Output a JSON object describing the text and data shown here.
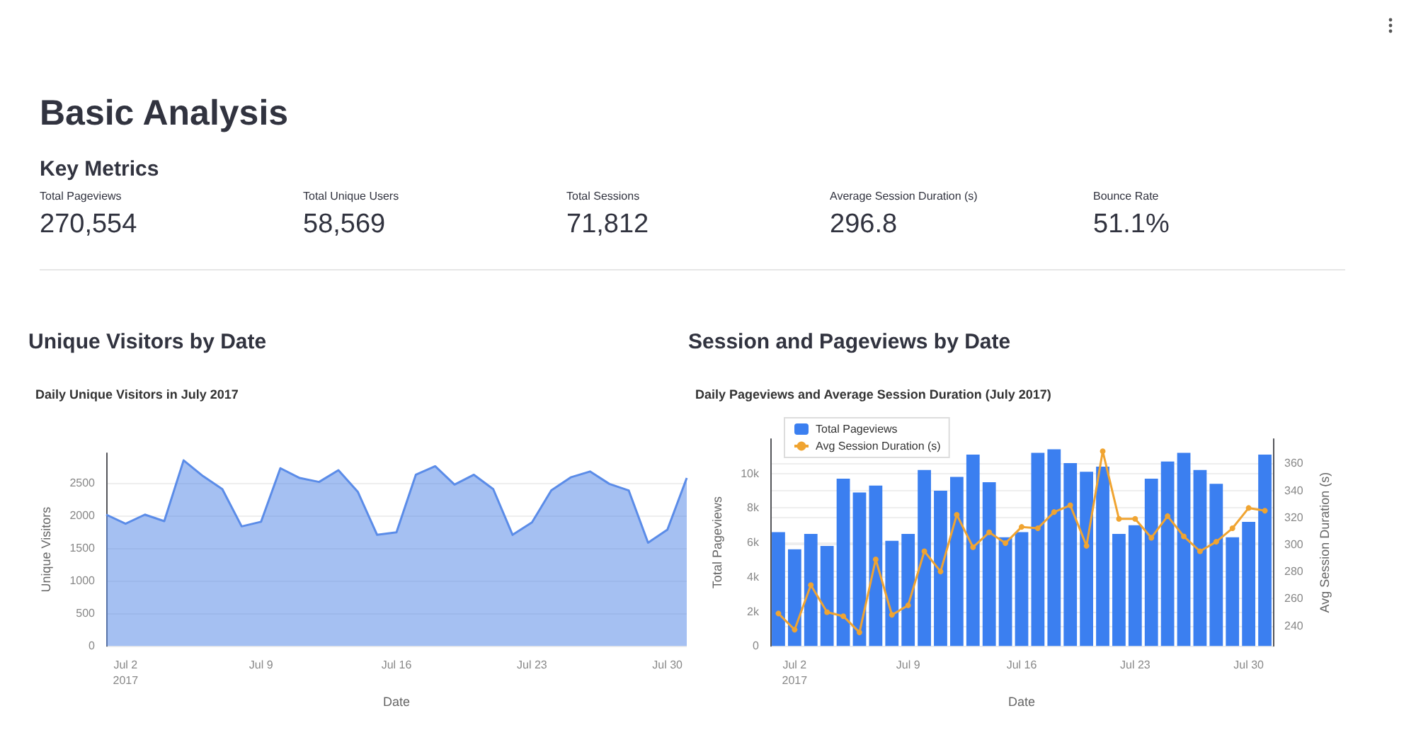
{
  "chart_data": [
    {
      "type": "other",
      "title": "Basic Analysis",
      "subtitle": "Key Metrics",
      "annotations": [
        "Total Pageviews",
        "270,554",
        "Total Unique Users",
        "58,569",
        "Total Sessions",
        "71,812",
        "Average Session Duration (s)",
        "296.8",
        "Bounce Rate",
        "51.1%"
      ]
    },
    {
      "type": "area",
      "title": "Unique Visitors by Date",
      "subtitle": "Daily Unique Visitors in July 2017",
      "xlabel": "Date",
      "ylabel": "Unique Visitors",
      "x": [
        "2017-07-01",
        "2017-07-02",
        "2017-07-03",
        "2017-07-04",
        "2017-07-05",
        "2017-07-06",
        "2017-07-07",
        "2017-07-08",
        "2017-07-09",
        "2017-07-10",
        "2017-07-11",
        "2017-07-12",
        "2017-07-13",
        "2017-07-14",
        "2017-07-15",
        "2017-07-16",
        "2017-07-17",
        "2017-07-18",
        "2017-07-19",
        "2017-07-20",
        "2017-07-21",
        "2017-07-22",
        "2017-07-23",
        "2017-07-24",
        "2017-07-25",
        "2017-07-26",
        "2017-07-27",
        "2017-07-28",
        "2017-07-29",
        "2017-07-30",
        "2017-07-31"
      ],
      "series": [
        {
          "color": "#5b8ce8",
          "values": [
            2010,
            1870,
            2010,
            1910,
            2840,
            2600,
            2400,
            1830,
            1900,
            2720,
            2570,
            2510,
            2690,
            2360,
            1700,
            1740,
            2620,
            2750,
            2470,
            2620,
            2400,
            1700,
            1890,
            2380,
            2580,
            2670,
            2480,
            2380,
            1580,
            1780,
            2570
          ]
        }
      ],
      "xlim": [
        "2017-07-01",
        "2017-07-31"
      ],
      "xticks": [
        {
          "value": "2017-07-02",
          "label": "Jul 2\n2017"
        },
        {
          "value": "2017-07-09",
          "label": "Jul 9"
        },
        {
          "value": "2017-07-16",
          "label": "Jul 16"
        },
        {
          "value": "2017-07-23",
          "label": "Jul 23"
        },
        {
          "value": "2017-07-30",
          "label": "Jul 30"
        }
      ],
      "ylim": [
        0,
        2950
      ],
      "yticks": [
        0,
        500,
        1000,
        1500,
        2000,
        2500
      ],
      "grid": "y",
      "legend": false
    },
    {
      "type": "bar",
      "title": "Session and Pageviews by Date",
      "subtitle": "Daily Pageviews and Average Session Duration (July 2017)",
      "xlabel": "Date",
      "ylabel": "Total Pageviews",
      "y2label": "Avg Session Duration (s)",
      "x": [
        "2017-07-01",
        "2017-07-02",
        "2017-07-03",
        "2017-07-04",
        "2017-07-05",
        "2017-07-06",
        "2017-07-07",
        "2017-07-08",
        "2017-07-09",
        "2017-07-10",
        "2017-07-11",
        "2017-07-12",
        "2017-07-13",
        "2017-07-14",
        "2017-07-15",
        "2017-07-16",
        "2017-07-17",
        "2017-07-18",
        "2017-07-19",
        "2017-07-20",
        "2017-07-21",
        "2017-07-22",
        "2017-07-23",
        "2017-07-24",
        "2017-07-25",
        "2017-07-26",
        "2017-07-27",
        "2017-07-28",
        "2017-07-29",
        "2017-07-30",
        "2017-07-31"
      ],
      "series": [
        {
          "name": "Total Pageviews",
          "color": "#3b7ff0",
          "values": [
            6600,
            5600,
            6500,
            5800,
            9700,
            8900,
            9300,
            6100,
            6500,
            10200,
            9000,
            9800,
            11100,
            9500,
            6300,
            6600,
            11200,
            11400,
            10600,
            10100,
            10400,
            6500,
            7000,
            9700,
            10700,
            11200,
            10200,
            9400,
            6300,
            7200,
            11100
          ]
        },
        {
          "name": "Avg Session Duration (s)",
          "type": "line",
          "axis": "y2",
          "color": "#f0a431",
          "values": [
            249,
            237,
            270,
            250,
            247,
            235,
            289,
            248,
            255,
            295,
            280,
            322,
            298,
            309,
            301,
            313,
            312,
            324,
            329,
            299,
            369,
            319,
            319,
            305,
            321,
            306,
            295,
            302,
            312,
            327,
            325
          ]
        }
      ],
      "xlim": [
        "2017-06-30T12:00",
        "2017-07-31T12:00"
      ],
      "xticks": [
        {
          "value": "2017-07-02",
          "label": "Jul 2\n2017"
        },
        {
          "value": "2017-07-09",
          "label": "Jul 9"
        },
        {
          "value": "2017-07-16",
          "label": "Jul 16"
        },
        {
          "value": "2017-07-23",
          "label": "Jul 23"
        },
        {
          "value": "2017-07-30",
          "label": "Jul 30"
        }
      ],
      "ylim": [
        0,
        12000
      ],
      "yticks": [
        0,
        {
          "value": 2000,
          "label": "2k"
        },
        {
          "value": 4000,
          "label": "4k"
        },
        {
          "value": 6000,
          "label": "6k"
        },
        {
          "value": 8000,
          "label": "8k"
        },
        {
          "value": 10000,
          "label": "10k"
        }
      ],
      "y2lim": [
        225,
        378
      ],
      "y2ticks": [
        240,
        260,
        280,
        300,
        320,
        340,
        360
      ],
      "grid": "y",
      "legend": "top left",
      "marker": "circle",
      "line_style": "solid"
    }
  ]
}
